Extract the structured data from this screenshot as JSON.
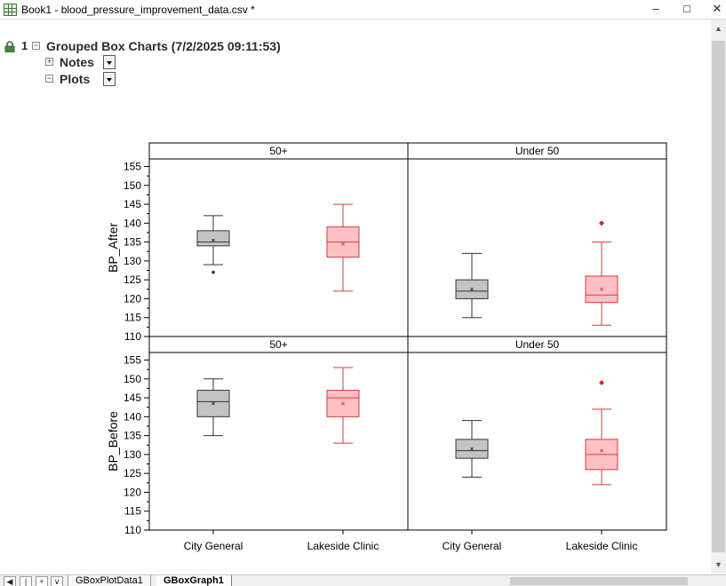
{
  "window": {
    "title": "Book1 - blood_pressure_improvement_data.csv *",
    "minimize_glyph": "–",
    "maximize_glyph": "□",
    "close_glyph": "✕"
  },
  "tree": {
    "root_index": "1",
    "root_label": "Grouped Box Charts (7/2/2025 09:11:53)",
    "children": [
      {
        "label": "Notes"
      },
      {
        "label": "Plots"
      }
    ]
  },
  "sheet_tabs": [
    {
      "label": "GBoxPlotData1"
    },
    {
      "label": "GBoxGraph1"
    }
  ],
  "nav_buttons": [
    "◀",
    "|",
    "+",
    "∨"
  ],
  "colors": {
    "gray_fill": "#c4c4c4",
    "gray_stroke": "#333333",
    "red_fill": "#ffc0c4",
    "red_stroke": "#d93a3a",
    "outlier_red": "#cc2a2a"
  },
  "chart_data": {
    "type": "box",
    "x_categories": [
      "City General",
      "Lakeside Clinic"
    ],
    "column_groups": [
      "50+",
      "Under 50"
    ],
    "row_panels": [
      {
        "ylabel": "BP_After",
        "ylim": [
          110,
          157
        ],
        "yticks": [
          110,
          115,
          120,
          125,
          130,
          135,
          140,
          145,
          150,
          155
        ],
        "groups": [
          {
            "name": "50+",
            "boxes": [
              {
                "category": "City General",
                "whisker_low": 129,
                "q1": 134,
                "median": 135,
                "q3": 138,
                "whisker_high": 142,
                "mean": 135.5,
                "outliers": [
                  127
                ]
              },
              {
                "category": "Lakeside Clinic",
                "whisker_low": 122,
                "q1": 131,
                "median": 135,
                "q3": 139,
                "whisker_high": 145,
                "mean": 134.5,
                "outliers": []
              }
            ]
          },
          {
            "name": "Under 50",
            "boxes": [
              {
                "category": "City General",
                "whisker_low": 115,
                "q1": 120,
                "median": 122,
                "q3": 125,
                "whisker_high": 132,
                "mean": 122.5,
                "outliers": []
              },
              {
                "category": "Lakeside Clinic",
                "whisker_low": 113,
                "q1": 119,
                "median": 121,
                "q3": 126,
                "whisker_high": 135,
                "mean": 122.5,
                "outliers": [
                  140
                ]
              }
            ]
          }
        ]
      },
      {
        "ylabel": "BP_Before",
        "ylim": [
          110,
          157
        ],
        "yticks": [
          110,
          115,
          120,
          125,
          130,
          135,
          140,
          145,
          150,
          155
        ],
        "groups": [
          {
            "name": "50+",
            "boxes": [
              {
                "category": "City General",
                "whisker_low": 135,
                "q1": 140,
                "median": 144,
                "q3": 147,
                "whisker_high": 150,
                "mean": 143.5,
                "outliers": []
              },
              {
                "category": "Lakeside Clinic",
                "whisker_low": 133,
                "q1": 140,
                "median": 145,
                "q3": 147,
                "whisker_high": 153,
                "mean": 143.5,
                "outliers": []
              }
            ]
          },
          {
            "name": "Under 50",
            "boxes": [
              {
                "category": "City General",
                "whisker_low": 124,
                "q1": 129,
                "median": 131,
                "q3": 134,
                "whisker_high": 139,
                "mean": 131.5,
                "outliers": []
              },
              {
                "category": "Lakeside Clinic",
                "whisker_low": 122,
                "q1": 126,
                "median": 130,
                "q3": 134,
                "whisker_high": 142,
                "mean": 131,
                "outliers": [
                  149
                ]
              }
            ]
          }
        ]
      }
    ]
  }
}
